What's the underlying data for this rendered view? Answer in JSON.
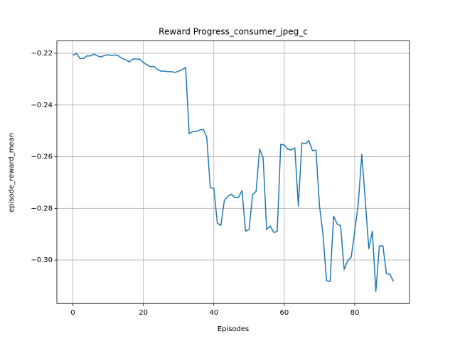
{
  "chart_data": {
    "type": "line",
    "title": "Reward Progress_consumer_jpeg_c",
    "xlabel": "Episodes",
    "ylabel": "episode_reward_mean",
    "x": [
      0,
      1,
      2,
      3,
      4,
      5,
      6,
      7,
      8,
      9,
      10,
      11,
      12,
      13,
      14,
      15,
      16,
      17,
      18,
      19,
      20,
      21,
      22,
      23,
      24,
      25,
      26,
      27,
      28,
      29,
      30,
      31,
      32,
      33,
      34,
      35,
      36,
      37,
      38,
      39,
      40,
      41,
      42,
      43,
      44,
      45,
      46,
      47,
      48,
      49,
      50,
      51,
      52,
      53,
      54,
      55,
      56,
      57,
      58,
      59,
      60,
      61,
      62,
      63,
      64,
      65,
      66,
      67,
      68,
      69,
      70,
      71,
      72,
      73,
      74,
      75,
      76,
      77,
      78,
      79,
      80,
      81,
      82,
      83,
      84,
      85,
      86,
      87,
      88,
      89,
      90,
      91
    ],
    "series": [
      {
        "name": "episode_reward_mean",
        "color": "#1f77b4",
        "values": [
          -0.2208,
          -0.22,
          -0.222,
          -0.222,
          -0.221,
          -0.221,
          -0.2203,
          -0.221,
          -0.2214,
          -0.2208,
          -0.2206,
          -0.2208,
          -0.2206,
          -0.221,
          -0.222,
          -0.2225,
          -0.2233,
          -0.2222,
          -0.2222,
          -0.2222,
          -0.2236,
          -0.2244,
          -0.2252,
          -0.225,
          -0.2263,
          -0.2269,
          -0.2269,
          -0.2271,
          -0.2271,
          -0.2274,
          -0.2269,
          -0.2263,
          -0.2255,
          -0.2511,
          -0.2503,
          -0.2503,
          -0.2497,
          -0.2494,
          -0.2525,
          -0.272,
          -0.2723,
          -0.2857,
          -0.2866,
          -0.2769,
          -0.2753,
          -0.2745,
          -0.2758,
          -0.2758,
          -0.2731,
          -0.2888,
          -0.2882,
          -0.2747,
          -0.2734,
          -0.2571,
          -0.2604,
          -0.2882,
          -0.2868,
          -0.2893,
          -0.289,
          -0.2552,
          -0.2555,
          -0.2571,
          -0.2574,
          -0.2566,
          -0.2791,
          -0.2547,
          -0.255,
          -0.2538,
          -0.2577,
          -0.2574,
          -0.2791,
          -0.2901,
          -0.308,
          -0.3083,
          -0.283,
          -0.286,
          -0.2868,
          -0.3036,
          -0.3003,
          -0.2989,
          -0.2888,
          -0.2783,
          -0.2591,
          -0.2769,
          -0.2956,
          -0.2888,
          -0.3121,
          -0.2945,
          -0.2945,
          -0.3053,
          -0.3055,
          -0.3083
        ]
      }
    ],
    "xlim": [
      -4.55,
      95.55
    ],
    "ylim": [
      -0.3168,
      -0.2152
    ],
    "xticks": [
      0,
      20,
      40,
      60,
      80
    ],
    "yticks": [
      {
        "value": -0.3,
        "label": "−0.30"
      },
      {
        "value": -0.28,
        "label": "−0.28"
      },
      {
        "value": -0.26,
        "label": "−0.26"
      },
      {
        "value": -0.24,
        "label": "−0.24"
      },
      {
        "value": -0.22,
        "label": "−0.22"
      }
    ],
    "grid": true
  }
}
